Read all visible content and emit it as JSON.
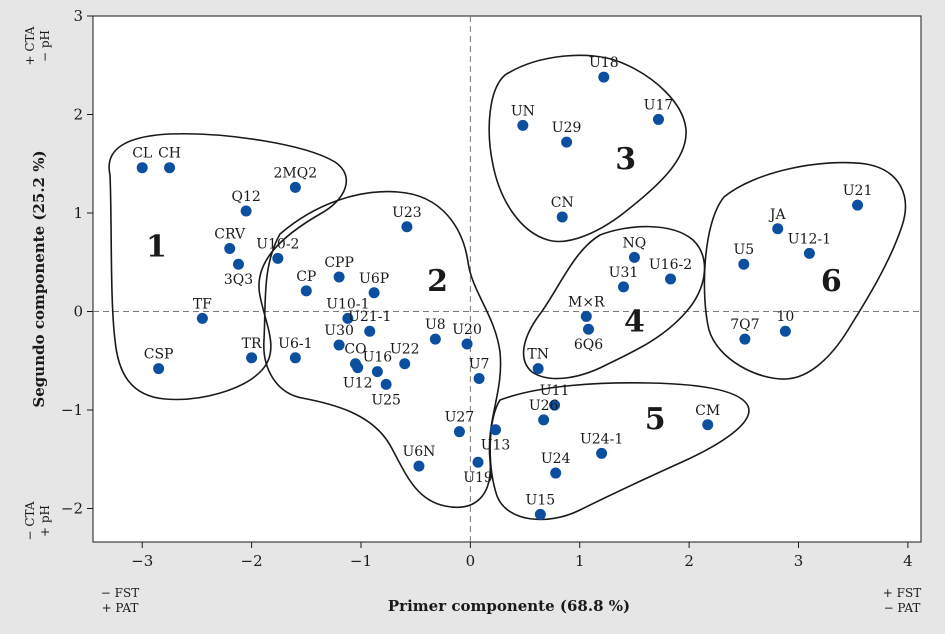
{
  "colors": {
    "background": "#e6e6e6",
    "plot_bg": "#ffffff",
    "point": "#0b4f9e",
    "ref_line": "#7a7a7a",
    "outline": "#1a1a1a"
  },
  "chart_data": {
    "type": "scatter",
    "title": "",
    "xlabel": "Primer componente (68.8 %)",
    "ylabel": "Segundo componente (25.2 %)",
    "xlim": [
      -3.45,
      4.12
    ],
    "ylim": [
      -2.34,
      3.0
    ],
    "xticks": [
      -3,
      -2,
      -1,
      0,
      1,
      2,
      3,
      4
    ],
    "yticks": [
      -2,
      -1,
      0,
      1,
      2,
      3
    ],
    "xtick_labels": [
      "−3",
      "−2",
      "−1",
      "0",
      "1",
      "2",
      "3",
      "4"
    ],
    "ytick_labels": [
      "−2",
      "−1",
      "0",
      "1",
      "2",
      "3"
    ],
    "reference_lines": {
      "x": 0,
      "y": 0
    },
    "corner_labels": {
      "top_left": [
        "+ CTA",
        "− pH"
      ],
      "bottom_left": [
        "− CTA",
        "+ pH"
      ],
      "x_left": [
        "− FST",
        "+ PAT"
      ],
      "x_right": [
        "+ FST",
        "− PAT"
      ]
    },
    "points": [
      {
        "label": "CL",
        "x": -3.0,
        "y": 1.46,
        "lpos": "t"
      },
      {
        "label": "CH",
        "x": -2.75,
        "y": 1.46,
        "lpos": "t"
      },
      {
        "label": "Q12",
        "x": -2.05,
        "y": 1.02,
        "lpos": "t"
      },
      {
        "label": "2MQ2",
        "x": -1.6,
        "y": 1.26,
        "lpos": "t"
      },
      {
        "label": "CRV",
        "x": -2.2,
        "y": 0.64,
        "lpos": "t"
      },
      {
        "label": "3Q3",
        "x": -2.12,
        "y": 0.48,
        "lpos": "b"
      },
      {
        "label": "U10-2",
        "x": -1.76,
        "y": 0.54,
        "lpos": "t"
      },
      {
        "label": "TF",
        "x": -2.45,
        "y": -0.07,
        "lpos": "t"
      },
      {
        "label": "CSP",
        "x": -2.85,
        "y": -0.58,
        "lpos": "t"
      },
      {
        "label": "TR",
        "x": -2.0,
        "y": -0.47,
        "lpos": "t"
      },
      {
        "label": "U23",
        "x": -0.58,
        "y": 0.86,
        "lpos": "t"
      },
      {
        "label": "CP",
        "x": -1.5,
        "y": 0.21,
        "lpos": "t"
      },
      {
        "label": "CPP",
        "x": -1.2,
        "y": 0.35,
        "lpos": "t"
      },
      {
        "label": "U6P",
        "x": -0.88,
        "y": 0.19,
        "lpos": "t"
      },
      {
        "label": "U10-1",
        "x": -1.12,
        "y": -0.07,
        "lpos": "t"
      },
      {
        "label": "U21-1",
        "x": -0.92,
        "y": -0.2,
        "lpos": "t"
      },
      {
        "label": "U30",
        "x": -1.2,
        "y": -0.34,
        "lpos": "t"
      },
      {
        "label": "U6-1",
        "x": -1.6,
        "y": -0.47,
        "lpos": "t"
      },
      {
        "label": "CO",
        "x": -1.05,
        "y": -0.53,
        "lpos": "t"
      },
      {
        "label": "U12",
        "x": -1.03,
        "y": -0.57,
        "lpos": "b"
      },
      {
        "label": "U16",
        "x": -0.85,
        "y": -0.61,
        "lpos": "t"
      },
      {
        "label": "U22",
        "x": -0.6,
        "y": -0.53,
        "lpos": "t"
      },
      {
        "label": "U25",
        "x": -0.77,
        "y": -0.74,
        "lpos": "b"
      },
      {
        "label": "U8",
        "x": -0.32,
        "y": -0.28,
        "lpos": "t"
      },
      {
        "label": "U20",
        "x": -0.03,
        "y": -0.33,
        "lpos": "t"
      },
      {
        "label": "U7",
        "x": 0.08,
        "y": -0.68,
        "lpos": "t"
      },
      {
        "label": "U27",
        "x": -0.1,
        "y": -1.22,
        "lpos": "t"
      },
      {
        "label": "U6N",
        "x": -0.47,
        "y": -1.57,
        "lpos": "t"
      },
      {
        "label": "U19",
        "x": 0.07,
        "y": -1.53,
        "lpos": "b"
      },
      {
        "label": "UN",
        "x": 0.48,
        "y": 1.89,
        "lpos": "t"
      },
      {
        "label": "U18",
        "x": 1.22,
        "y": 2.38,
        "lpos": "t"
      },
      {
        "label": "U29",
        "x": 0.88,
        "y": 1.72,
        "lpos": "t"
      },
      {
        "label": "U17",
        "x": 1.72,
        "y": 1.95,
        "lpos": "t"
      },
      {
        "label": "CN",
        "x": 0.84,
        "y": 0.96,
        "lpos": "t"
      },
      {
        "label": "NQ",
        "x": 1.5,
        "y": 0.55,
        "lpos": "t"
      },
      {
        "label": "U31",
        "x": 1.4,
        "y": 0.25,
        "lpos": "t"
      },
      {
        "label": "U16-2",
        "x": 1.83,
        "y": 0.33,
        "lpos": "t"
      },
      {
        "label": "M×R",
        "x": 1.06,
        "y": -0.05,
        "lpos": "t"
      },
      {
        "label": "6Q6",
        "x": 1.08,
        "y": -0.18,
        "lpos": "b"
      },
      {
        "label": "TN",
        "x": 0.62,
        "y": -0.58,
        "lpos": "t"
      },
      {
        "label": "U11",
        "x": 0.77,
        "y": -0.95,
        "lpos": "t"
      },
      {
        "label": "U26",
        "x": 0.67,
        "y": -1.1,
        "lpos": "t"
      },
      {
        "label": "U13",
        "x": 0.23,
        "y": -1.2,
        "lpos": "b"
      },
      {
        "label": "U24-1",
        "x": 1.2,
        "y": -1.44,
        "lpos": "t"
      },
      {
        "label": "U24",
        "x": 0.78,
        "y": -1.64,
        "lpos": "t"
      },
      {
        "label": "CM",
        "x": 2.17,
        "y": -1.15,
        "lpos": "t"
      },
      {
        "label": "U15",
        "x": 0.64,
        "y": -2.06,
        "lpos": "t"
      },
      {
        "label": "U21",
        "x": 3.54,
        "y": 1.08,
        "lpos": "t"
      },
      {
        "label": "JA",
        "x": 2.81,
        "y": 0.84,
        "lpos": "t"
      },
      {
        "label": "U5",
        "x": 2.5,
        "y": 0.48,
        "lpos": "t"
      },
      {
        "label": "U12-1",
        "x": 3.1,
        "y": 0.59,
        "lpos": "t"
      },
      {
        "label": "7Q7",
        "x": 2.51,
        "y": -0.28,
        "lpos": "t"
      },
      {
        "label": "10",
        "x": 2.88,
        "y": -0.2,
        "lpos": "t"
      }
    ],
    "groups": [
      {
        "label": "1",
        "x": -2.87,
        "y": 0.66
      },
      {
        "label": "2",
        "x": -0.3,
        "y": 0.31
      },
      {
        "label": "3",
        "x": 1.42,
        "y": 1.55
      },
      {
        "label": "4",
        "x": 1.5,
        "y": -0.1
      },
      {
        "label": "5",
        "x": 1.69,
        "y": -1.09
      },
      {
        "label": "6",
        "x": 3.3,
        "y": 0.31
      }
    ]
  }
}
